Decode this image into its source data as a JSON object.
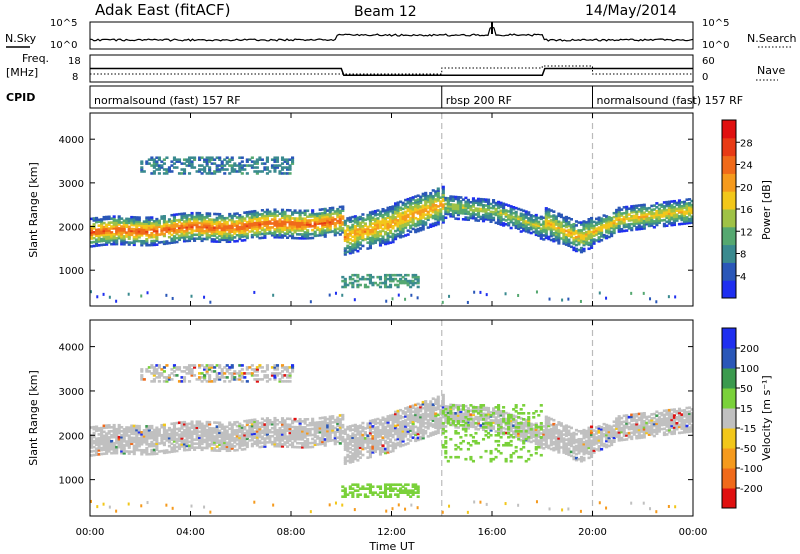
{
  "header": {
    "title": "Adak East (fitACF)",
    "beam": "Beam 12",
    "date": "14/May/2014"
  },
  "strip_labels": {
    "nsky": "N.Sky",
    "nsearch": "N.Search",
    "freq_top": "Freq.",
    "freq_unit": "[MHz]",
    "nave": "Nave",
    "cpid": "CPID",
    "noise_tick_hi": "10^5",
    "noise_tick_lo": "10^0",
    "noise_tick_hi_r": "10^5",
    "noise_tick_lo_r": "10^0",
    "freq_tick_hi": "18",
    "freq_tick_lo": "8",
    "nave_tick_hi": "60",
    "nave_tick_lo": "0"
  },
  "cpid_segments": [
    {
      "label": "normalsound (fast) 157 RF",
      "start": "00:00",
      "end": "14:00"
    },
    {
      "label": "rbsp 200 RF",
      "start": "14:00",
      "end": "20:00"
    },
    {
      "label": "normalsound (fast) 157 RF",
      "start": "20:00",
      "end": "24:00"
    }
  ],
  "axes": {
    "xlabel": "Time UT",
    "ylabel_power": "Slant Range [km]",
    "ylabel_velocity": "Slant Range [km]",
    "x_ticks": [
      "00:00",
      "04:00",
      "08:00",
      "12:00",
      "16:00",
      "20:00",
      "00:00"
    ],
    "y_ticks": [
      "1000",
      "2000",
      "3000",
      "4000"
    ]
  },
  "colorbars": {
    "power": {
      "label": "Power [dB]",
      "ticks": [
        "4",
        "8",
        "12",
        "16",
        "20",
        "24",
        "28"
      ],
      "colors": [
        "#1f2ff0",
        "#2a57b8",
        "#3a8a8f",
        "#55a870",
        "#9fc246",
        "#f2c71a",
        "#f59a1d",
        "#f06a1a",
        "#e83a15",
        "#e01010"
      ]
    },
    "velocity": {
      "label": "Velocity [m s⁻¹]",
      "ticks": [
        "-200",
        "-100",
        "-50",
        "-15",
        "15",
        "50",
        "100",
        "200"
      ],
      "colors": [
        "#e01010",
        "#f06a1a",
        "#f59a1d",
        "#f2c71a",
        "#c0c0c0",
        "#7ad13a",
        "#3b9a4e",
        "#2a57b8",
        "#1f2ff0"
      ]
    }
  },
  "chart_data": [
    {
      "type": "heatmap",
      "title": "Power",
      "xlabel": "Time UT",
      "ylabel": "Slant Range [km]",
      "xlim": [
        0,
        24
      ],
      "ylim": [
        180,
        4600
      ],
      "colorbar_range": [
        0,
        30
      ],
      "colorbar_label": "Power [dB]",
      "features": [
        {
          "name": "main band",
          "t_start": 0,
          "t_end": 10,
          "range_km": [
            1700,
            2400
          ],
          "peak_db": 24
        },
        {
          "name": "main band (post-10)",
          "t_start": 10,
          "t_end": 14,
          "range_km": [
            1500,
            2700
          ],
          "peak_db": 22
        },
        {
          "name": "main band (rbsp)",
          "t_start": 14,
          "t_end": 18,
          "range_km": [
            2000,
            2700
          ],
          "peak_db": 16
        },
        {
          "name": "main band (late)",
          "t_start": 18,
          "t_end": 24,
          "range_km": [
            1600,
            2500
          ],
          "peak_db": 20
        },
        {
          "name": "near patch",
          "t_start": 10,
          "t_end": 13,
          "range_km": [
            600,
            900
          ],
          "peak_db": 10
        },
        {
          "name": "far echoes",
          "t_start": 2,
          "t_end": 8,
          "range_km": [
            3200,
            3600
          ],
          "peak_db": 8
        }
      ]
    },
    {
      "type": "heatmap",
      "title": "Velocity",
      "xlabel": "Time UT",
      "ylabel": "Slant Range [km]",
      "xlim": [
        0,
        24
      ],
      "ylim": [
        180,
        4600
      ],
      "colorbar_range": [
        -200,
        200
      ],
      "colorbar_label": "Velocity [m s-1]",
      "features": [
        {
          "name": "main band",
          "t_start": 0,
          "t_end": 24,
          "range_km": [
            1700,
            2500
          ],
          "velocity": 0
        },
        {
          "name": "near patch",
          "t_start": 10,
          "t_end": 13,
          "range_km": [
            600,
            800
          ],
          "velocity": 50
        },
        {
          "name": "rbsp echoes",
          "t_start": 14,
          "t_end": 18,
          "range_km": [
            1400,
            2700
          ],
          "velocity": 40
        }
      ]
    },
    {
      "type": "line",
      "title": "N.Sky",
      "x": [
        0,
        9.8,
        10,
        16,
        18,
        24
      ],
      "values": [
        3,
        3,
        3.5,
        3.8,
        3,
        3
      ],
      "xlim": [
        0,
        24
      ]
    },
    {
      "type": "line",
      "title": "Freq.",
      "x": [
        0,
        10,
        10.1,
        18,
        18.1,
        24
      ],
      "values": [
        13,
        13,
        10.5,
        10.5,
        13,
        13
      ],
      "ylim": [
        8,
        18
      ]
    }
  ]
}
